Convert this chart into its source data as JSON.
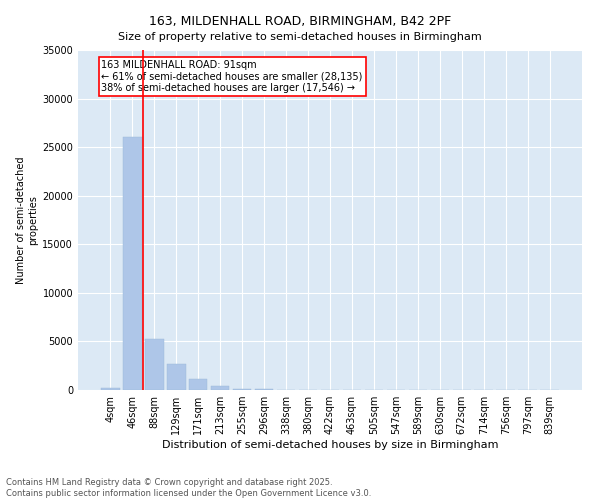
{
  "title": "163, MILDENHALL ROAD, BIRMINGHAM, B42 2PF",
  "subtitle": "Size of property relative to semi-detached houses in Birmingham",
  "xlabel": "Distribution of semi-detached houses by size in Birmingham",
  "ylabel": "Number of semi-detached\nproperties",
  "categories": [
    "4sqm",
    "46sqm",
    "88sqm",
    "129sqm",
    "171sqm",
    "213sqm",
    "255sqm",
    "296sqm",
    "338sqm",
    "380sqm",
    "422sqm",
    "463sqm",
    "505sqm",
    "547sqm",
    "589sqm",
    "630sqm",
    "672sqm",
    "714sqm",
    "756sqm",
    "797sqm",
    "839sqm"
  ],
  "values": [
    200,
    26000,
    5200,
    2700,
    1100,
    400,
    120,
    60,
    30,
    15,
    10,
    6,
    4,
    3,
    2,
    1,
    1,
    1,
    1,
    0,
    0
  ],
  "bar_color": "#aec6e8",
  "bar_edge_color": "#9ab8d8",
  "vline_color": "red",
  "vline_x_index": 2,
  "annotation_text": "163 MILDENHALL ROAD: 91sqm\n← 61% of semi-detached houses are smaller (28,135)\n38% of semi-detached houses are larger (17,546) →",
  "annotation_border_color": "red",
  "bg_color": "#dce9f5",
  "ylim": [
    0,
    35000
  ],
  "yticks": [
    0,
    5000,
    10000,
    15000,
    20000,
    25000,
    30000,
    35000
  ],
  "footnote": "Contains HM Land Registry data © Crown copyright and database right 2025.\nContains public sector information licensed under the Open Government Licence v3.0.",
  "title_fontsize": 9,
  "xlabel_fontsize": 8,
  "ylabel_fontsize": 7,
  "tick_fontsize": 7,
  "annot_fontsize": 7,
  "footnote_fontsize": 6
}
